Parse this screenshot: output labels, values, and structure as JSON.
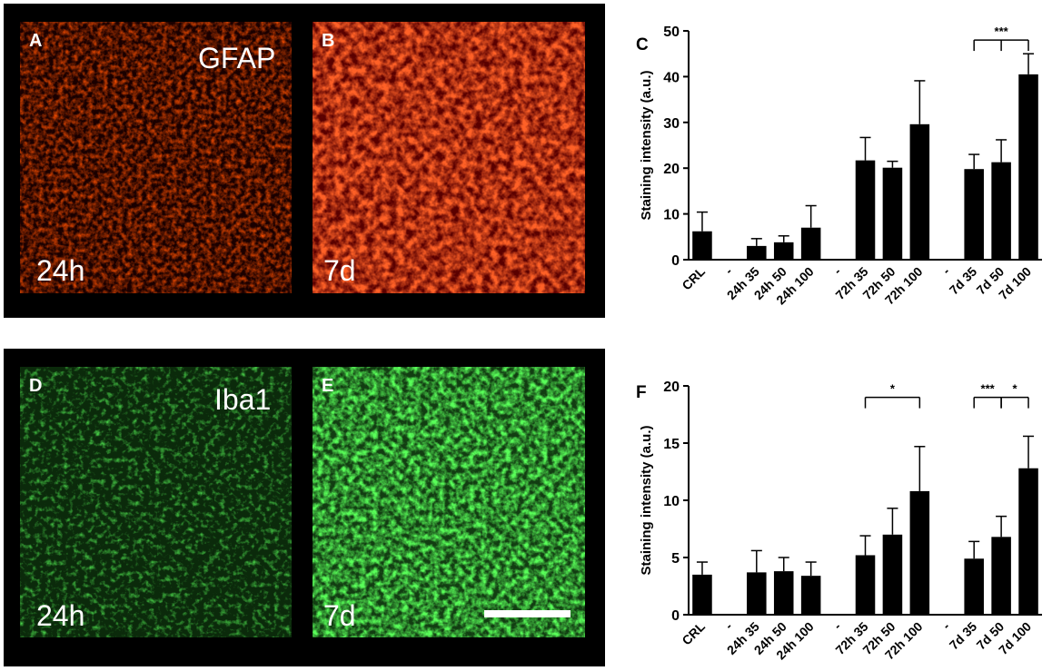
{
  "panels": {
    "A": {
      "letter": "A",
      "stain": "GFAP",
      "time": "24h"
    },
    "B": {
      "letter": "B",
      "time": "7d"
    },
    "C": {
      "letter": "C"
    },
    "D": {
      "letter": "D",
      "stain": "Iba1",
      "time": "24h"
    },
    "E": {
      "letter": "E",
      "time": "7d"
    },
    "F": {
      "letter": "F"
    }
  },
  "colors": {
    "gfap": "#ff1a00",
    "iba1": "#1aff1a",
    "bars": "#000000",
    "frame": "#000000"
  },
  "chart_data": [
    {
      "panel": "C",
      "type": "bar",
      "ylabel": "Staining intensity (a.u.)",
      "ylim": [
        0,
        50
      ],
      "yticks": [
        0,
        10,
        20,
        30,
        40,
        50
      ],
      "categories": [
        "CRL",
        "-",
        "24h 35",
        "24h 50",
        "24h 100",
        "-",
        "72h 35",
        "72h 50",
        "72h 100",
        "-",
        "7d 35",
        "7d 50",
        "7d 100"
      ],
      "values": [
        6.2,
        null,
        3.0,
        3.8,
        7.0,
        null,
        21.7,
        20.1,
        29.6,
        null,
        19.8,
        21.3,
        40.5
      ],
      "errors": [
        4.2,
        null,
        1.6,
        1.4,
        4.8,
        null,
        5.0,
        1.4,
        9.5,
        null,
        3.2,
        4.9,
        4.5
      ],
      "annotations": [
        {
          "label": "***",
          "from": 10,
          "to": 12,
          "mid": 11,
          "y": 48
        }
      ]
    },
    {
      "panel": "F",
      "type": "bar",
      "ylabel": "Staining intensity (a.u.)",
      "ylim": [
        0,
        20
      ],
      "yticks": [
        0,
        5,
        10,
        15,
        20
      ],
      "categories": [
        "CRL",
        "-",
        "24h 35",
        "24h 50",
        "24h 100",
        "-",
        "72h 35",
        "72h 50",
        "72h 100",
        "-",
        "7d 35",
        "7d 50",
        "7d 100"
      ],
      "values": [
        3.5,
        null,
        3.7,
        3.8,
        3.4,
        null,
        5.2,
        7.0,
        10.8,
        null,
        4.9,
        6.8,
        12.8
      ],
      "errors": [
        1.1,
        null,
        1.9,
        1.2,
        1.2,
        null,
        1.7,
        2.3,
        3.9,
        null,
        1.5,
        1.8,
        2.8
      ],
      "annotations": [
        {
          "label": "*",
          "from": 6,
          "to": 8,
          "y": 19
        },
        {
          "label": "***",
          "from": 10,
          "to": 11,
          "y": 19
        },
        {
          "label": "*",
          "from": 11,
          "to": 12,
          "y": 19
        }
      ]
    }
  ]
}
